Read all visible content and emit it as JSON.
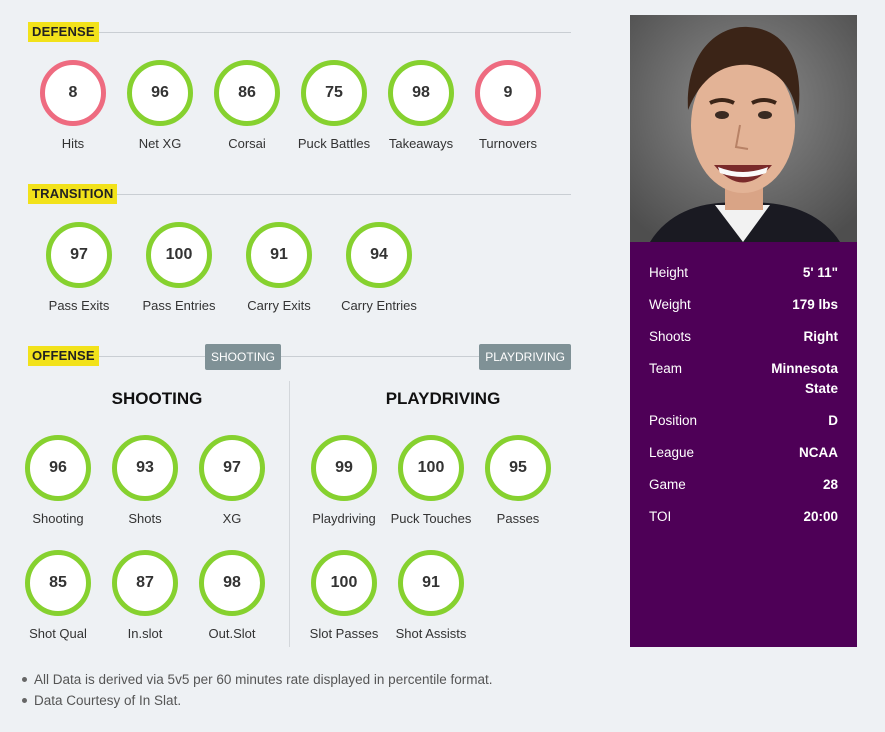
{
  "sections": {
    "defense": "DEFENSE",
    "transition": "TRANSITION",
    "offense": "OFFENSE",
    "offense_tabs": [
      "SHOOTING",
      "PLAYDRIVING"
    ]
  },
  "defense": [
    {
      "label": "Hits",
      "value": "8",
      "status": "low"
    },
    {
      "label": "Net XG",
      "value": "96",
      "status": "high"
    },
    {
      "label": "Corsai",
      "value": "86",
      "status": "high"
    },
    {
      "label": "Puck Battles",
      "value": "75",
      "status": "high"
    },
    {
      "label": "Takeaways",
      "value": "98",
      "status": "high"
    },
    {
      "label": "Turnovers",
      "value": "9",
      "status": "low"
    }
  ],
  "transition": [
    {
      "label": "Pass Exits",
      "value": "97"
    },
    {
      "label": "Pass Entries",
      "value": "100"
    },
    {
      "label": "Carry Exits",
      "value": "91"
    },
    {
      "label": "Carry Entries",
      "value": "94"
    }
  ],
  "shooting": {
    "title": "SHOOTING",
    "stats": [
      {
        "label": "Shooting",
        "value": "96"
      },
      {
        "label": "Shots",
        "value": "93"
      },
      {
        "label": "XG",
        "value": "97"
      },
      {
        "label": "Shot Qual",
        "value": "85"
      },
      {
        "label": "In.slot",
        "value": "87"
      },
      {
        "label": "Out.Slot",
        "value": "98"
      }
    ]
  },
  "playdriving": {
    "title": "PLAYDRIVING",
    "stats": [
      {
        "label": "Playdriving",
        "value": "99"
      },
      {
        "label": "Puck Touches",
        "value": "100"
      },
      {
        "label": "Passes",
        "value": "95"
      },
      {
        "label": "Slot Passes",
        "value": "100"
      },
      {
        "label": "Shot Assists",
        "value": "91"
      }
    ]
  },
  "notes": [
    "All Data is derived via 5v5 per 60 minutes rate displayed in percentile format.",
    "Data Courtesy of In Slat."
  ],
  "profile": [
    {
      "key": "Height",
      "value": "5' 11\""
    },
    {
      "key": "Weight",
      "value": "179 lbs"
    },
    {
      "key": "Shoots",
      "value": "Right"
    },
    {
      "key": "Team",
      "value": "Minnesota State"
    },
    {
      "key": "Position",
      "value": "D"
    },
    {
      "key": "League",
      "value": "NCAA"
    },
    {
      "key": "Game",
      "value": "28"
    },
    {
      "key": "TOI",
      "value": "20:00"
    }
  ],
  "colors": {
    "high": "#86d12f",
    "low": "#ee6b80",
    "panel": "#4e0057",
    "tag": "#f2e21a"
  }
}
